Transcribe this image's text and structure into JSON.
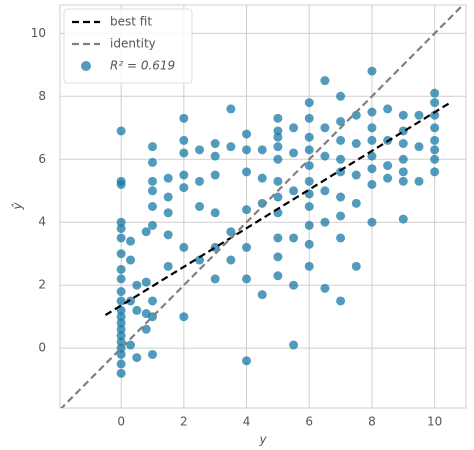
{
  "chart_data": {
    "type": "scatter",
    "xlabel": "y",
    "ylabel": "ŷ",
    "xlim": [
      -1.95,
      11.0
    ],
    "ylim": [
      -1.9,
      10.9
    ],
    "xticks": [
      0,
      2,
      4,
      6,
      8,
      10
    ],
    "yticks": [
      0,
      2,
      4,
      6,
      8,
      10
    ],
    "grid": true,
    "legend": "upper left",
    "lines": [
      {
        "name": "best fit",
        "color": "#000000",
        "x": [
          -0.5,
          10.5
        ],
        "values": [
          1.05,
          7.8
        ]
      },
      {
        "name": "identity",
        "color": "#808080",
        "x": [
          -1.95,
          11.0
        ],
        "values": [
          -1.95,
          11.0
        ]
      }
    ],
    "series": [
      {
        "name": "R² = 0.619",
        "color": "#1a7aa5",
        "x": [
          0,
          0,
          0,
          0,
          0,
          0,
          0,
          0,
          0,
          0,
          0,
          0,
          0,
          0,
          0,
          0,
          0,
          0,
          0,
          0,
          0,
          0.3,
          0.3,
          0.3,
          0.3,
          0.5,
          0.5,
          0.5,
          0.8,
          0.8,
          0.8,
          0.8,
          1,
          1,
          1,
          1,
          1,
          1,
          1,
          1,
          1,
          1.5,
          1.5,
          1.5,
          1.5,
          1.5,
          2,
          2,
          2,
          2,
          2,
          2,
          2,
          2.5,
          2.5,
          2.5,
          2.5,
          3,
          3,
          3,
          3,
          3,
          3,
          3.5,
          3.5,
          3.5,
          3.5,
          4,
          4,
          4,
          4,
          4,
          4,
          4,
          4.5,
          4.5,
          4.5,
          4.5,
          5,
          5,
          5,
          5,
          5,
          5,
          5,
          5,
          5,
          5,
          5,
          5.5,
          5.5,
          5.5,
          5.5,
          5.5,
          5.5,
          6,
          6,
          6,
          6,
          6,
          6,
          6,
          6,
          6,
          6,
          6,
          6.5,
          6.5,
          6.5,
          6.5,
          6.5,
          6.5,
          7,
          7,
          7,
          7,
          7,
          7,
          7,
          7,
          7,
          7.5,
          7.5,
          7.5,
          7.5,
          7.5,
          8,
          8,
          8,
          8,
          8,
          8,
          8,
          8,
          8.5,
          8.5,
          8.5,
          8.5,
          9,
          9,
          9,
          9,
          9,
          9,
          9,
          9.5,
          9.5,
          9.5,
          10,
          10,
          10,
          10,
          10,
          10,
          10,
          10
        ],
        "values": [
          6.9,
          5.3,
          5.2,
          4.0,
          3.8,
          3.5,
          3.0,
          2.5,
          2.2,
          1.8,
          1.5,
          1.2,
          1.0,
          0.8,
          0.6,
          0.4,
          0.2,
          0.0,
          -0.2,
          -0.5,
          -0.8,
          3.4,
          2.8,
          1.5,
          0.1,
          2.0,
          1.2,
          -0.3,
          3.7,
          2.1,
          1.1,
          0.6,
          6.4,
          5.9,
          5.3,
          5.0,
          4.5,
          3.9,
          1.5,
          1.0,
          -0.2,
          5.4,
          4.8,
          4.3,
          3.6,
          2.6,
          7.3,
          6.6,
          6.2,
          5.5,
          5.1,
          3.2,
          1.0,
          6.3,
          5.3,
          4.5,
          2.8,
          6.5,
          6.1,
          5.5,
          4.3,
          3.2,
          2.2,
          7.6,
          6.4,
          3.7,
          2.8,
          6.8,
          6.3,
          5.6,
          4.4,
          3.2,
          2.2,
          -0.4,
          6.3,
          5.4,
          4.6,
          1.7,
          7.3,
          6.9,
          6.7,
          6.4,
          6.0,
          5.3,
          4.8,
          4.3,
          3.5,
          2.9,
          2.3,
          7.0,
          6.2,
          5.0,
          3.5,
          2.0,
          0.1,
          7.8,
          7.3,
          6.7,
          6.3,
          5.8,
          5.3,
          4.9,
          4.5,
          3.9,
          3.3,
          2.6,
          8.5,
          7.0,
          6.1,
          5.0,
          4.0,
          1.9,
          8.0,
          7.2,
          6.6,
          6.0,
          5.6,
          4.8,
          4.2,
          3.5,
          1.5,
          7.4,
          6.5,
          5.5,
          4.6,
          2.6,
          8.8,
          7.5,
          7.0,
          6.6,
          6.1,
          5.7,
          5.2,
          4.0,
          7.6,
          6.6,
          5.8,
          5.4,
          7.4,
          6.9,
          6.5,
          6.0,
          5.6,
          5.3,
          4.1,
          7.4,
          6.4,
          5.3,
          8.1,
          7.8,
          7.4,
          7.0,
          6.6,
          6.3,
          6.0,
          5.6
        ]
      }
    ]
  }
}
